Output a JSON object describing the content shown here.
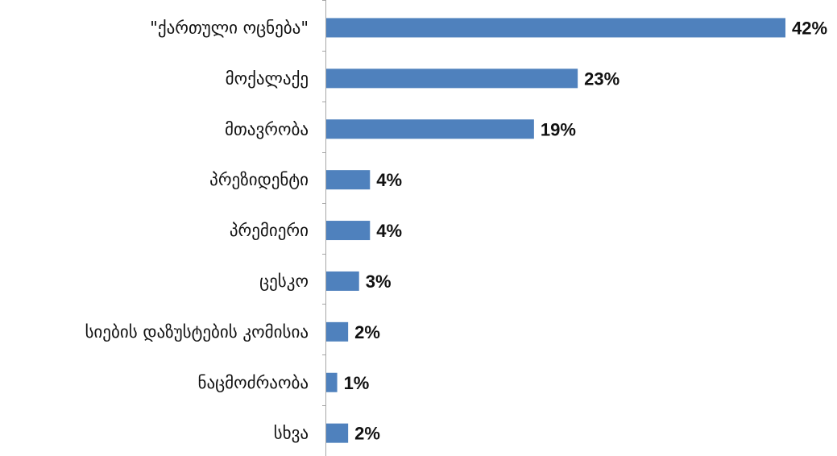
{
  "chart_data": {
    "type": "bar",
    "orientation": "horizontal",
    "title": "",
    "xlabel": "",
    "ylabel": "",
    "grid": false,
    "legend": "none",
    "value_suffix": "%",
    "xlim": [
      0,
      42
    ],
    "bar_color": "#4f81bd",
    "categories": [
      "\"ქართული ოცნება\"",
      "მოქალაქე",
      "მთავრობა",
      "პრეზიდენტი",
      "პრემიერი",
      "ცესკო",
      "სიების დაზუსტების კომისია",
      "ნაცმოძრაობა",
      "სხვა"
    ],
    "values": [
      42,
      23,
      19,
      4,
      4,
      3,
      2,
      1,
      2
    ],
    "value_labels": [
      "42%",
      "23%",
      "19%",
      "4%",
      "4%",
      "3%",
      "2%",
      "1%",
      "2%"
    ]
  }
}
